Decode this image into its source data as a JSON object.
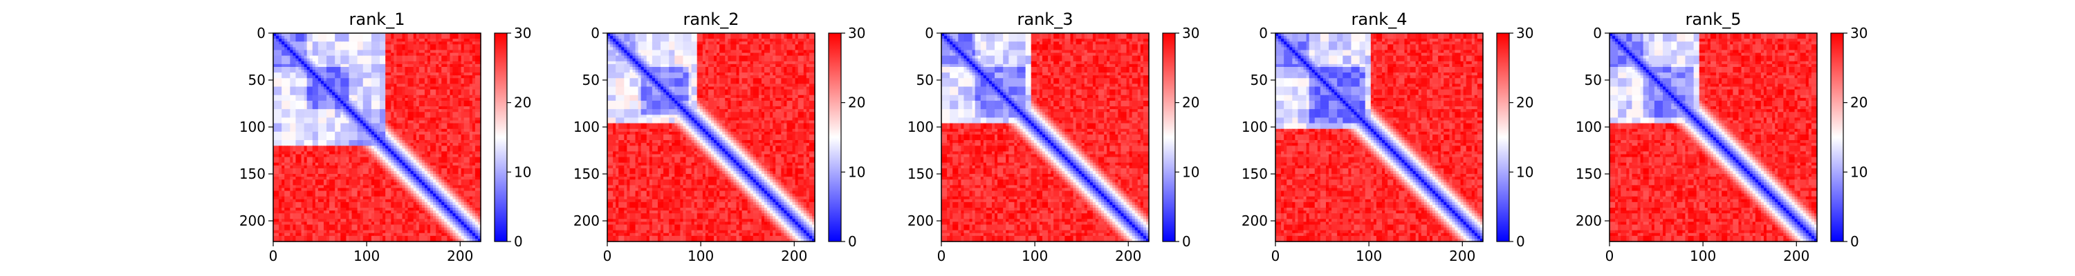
{
  "figure": {
    "colormap": "bwr",
    "colors": {
      "low": "#0000ff",
      "mid": "#ffffff",
      "high": "#ff0000"
    }
  },
  "chart_data": [
    {
      "type": "heatmap",
      "title": "rank_1",
      "xlabel": "",
      "ylabel": "",
      "xlim": [
        0,
        222
      ],
      "ylim": [
        222,
        0
      ],
      "x_ticks": [
        "0",
        "100",
        "200"
      ],
      "y_ticks": [
        "0",
        "50",
        "100",
        "150",
        "200"
      ],
      "colorbar": {
        "range": [
          0,
          30
        ],
        "ticks": [
          "0",
          "10",
          "20",
          "30"
        ]
      },
      "matrix_description": "Pairwise predicted aligned error. Low values (blue) along the diagonal and within residues ~0-120, with sub-blocks ~0-35, ~35-80, ~80-120; high values (red) elsewhere, residues ~120-222 mostly red except the diagonal.",
      "blocks": [
        {
          "range": [
            0,
            120
          ],
          "value": 10
        },
        {
          "range": [
            0,
            35
          ],
          "value": 5
        },
        {
          "range": [
            35,
            80
          ],
          "value": 4
        },
        {
          "range": [
            80,
            120
          ],
          "value": 6
        }
      ]
    },
    {
      "type": "heatmap",
      "title": "rank_2",
      "xlabel": "",
      "ylabel": "",
      "xlim": [
        0,
        222
      ],
      "ylim": [
        222,
        0
      ],
      "x_ticks": [
        "0",
        "100",
        "200"
      ],
      "y_ticks": [
        "0",
        "50",
        "100",
        "150",
        "200"
      ],
      "colorbar": {
        "range": [
          0,
          30
        ],
        "ticks": [
          "0",
          "10",
          "20",
          "30"
        ]
      },
      "matrix_description": "Low values within residues ~0-95 (strong block ~35-85), red elsewhere except the diagonal.",
      "blocks": [
        {
          "range": [
            0,
            95
          ],
          "value": 11
        },
        {
          "range": [
            35,
            85
          ],
          "value": 5
        },
        {
          "range": [
            0,
            30
          ],
          "value": 8
        }
      ]
    },
    {
      "type": "heatmap",
      "title": "rank_3",
      "xlabel": "",
      "ylabel": "",
      "xlim": [
        0,
        222
      ],
      "ylim": [
        222,
        0
      ],
      "x_ticks": [
        "0",
        "100",
        "200"
      ],
      "y_ticks": [
        "0",
        "50",
        "100",
        "150",
        "200"
      ],
      "colorbar": {
        "range": [
          0,
          30
        ],
        "ticks": [
          "0",
          "10",
          "20",
          "30"
        ]
      },
      "matrix_description": "Low values within residues ~0-95 with sub-blocks ~0-35 and ~35-90; red elsewhere except the diagonal.",
      "blocks": [
        {
          "range": [
            0,
            95
          ],
          "value": 10
        },
        {
          "range": [
            0,
            35
          ],
          "value": 5
        },
        {
          "range": [
            35,
            90
          ],
          "value": 5
        }
      ]
    },
    {
      "type": "heatmap",
      "title": "rank_4",
      "xlabel": "",
      "ylabel": "",
      "xlim": [
        0,
        222
      ],
      "ylim": [
        222,
        0
      ],
      "x_ticks": [
        "0",
        "100",
        "200"
      ],
      "y_ticks": [
        "0",
        "50",
        "100",
        "150",
        "200"
      ],
      "colorbar": {
        "range": [
          0,
          30
        ],
        "ticks": [
          "0",
          "10",
          "20",
          "30"
        ]
      },
      "matrix_description": "Low values within residues ~0-100 with sub-blocks ~0-35 and ~35-95; red elsewhere except the diagonal.",
      "blocks": [
        {
          "range": [
            0,
            100
          ],
          "value": 10
        },
        {
          "range": [
            0,
            35
          ],
          "value": 5
        },
        {
          "range": [
            35,
            95
          ],
          "value": 4
        }
      ]
    },
    {
      "type": "heatmap",
      "title": "rank_5",
      "xlabel": "",
      "ylabel": "",
      "xlim": [
        0,
        222
      ],
      "ylim": [
        222,
        0
      ],
      "x_ticks": [
        "0",
        "100",
        "200"
      ],
      "y_ticks": [
        "0",
        "50",
        "100",
        "150",
        "200"
      ],
      "colorbar": {
        "range": [
          0,
          30
        ],
        "ticks": [
          "0",
          "10",
          "20",
          "30"
        ]
      },
      "matrix_description": "Low values within residues ~0-95 with sub-blocks ~0-35 and ~35-90; red elsewhere except the diagonal.",
      "blocks": [
        {
          "range": [
            0,
            95
          ],
          "value": 10
        },
        {
          "range": [
            0,
            35
          ],
          "value": 5
        },
        {
          "range": [
            35,
            90
          ],
          "value": 5
        }
      ]
    }
  ]
}
